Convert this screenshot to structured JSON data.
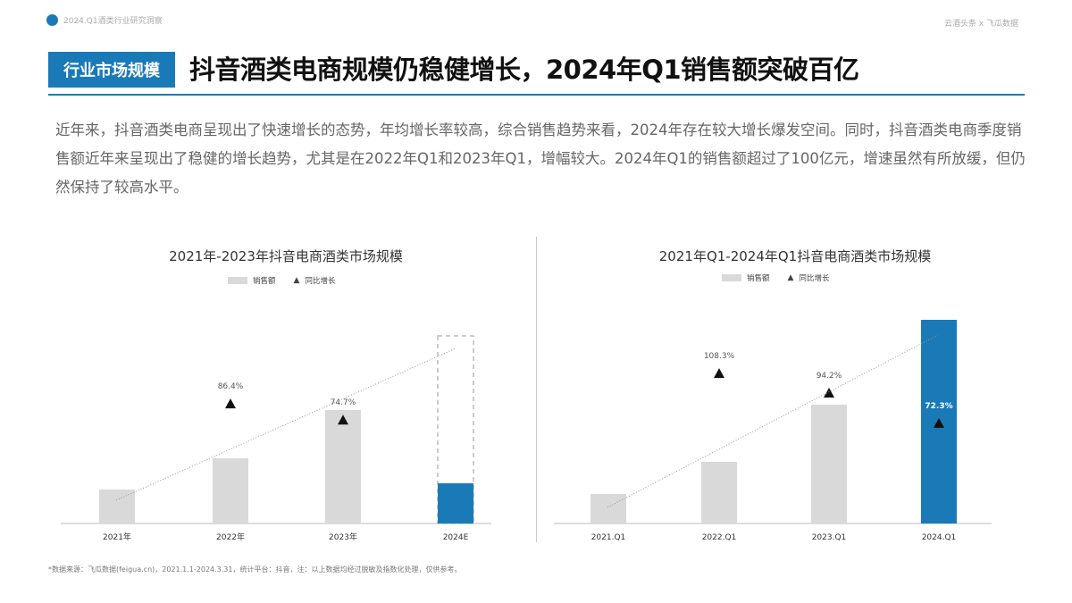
{
  "header": {
    "left": "2024.Q1酒类行业研究洞察",
    "right": "云酒头条 x 飞瓜数据"
  },
  "section_tag": "行业市场规模",
  "title": "抖音酒类电商规模仍稳健增长，2024年Q1销售额突破百亿",
  "paragraph": "近年来，抖音酒类电商呈现出了快速增长的态势，年均增长率较高，综合销售趋势来看，2024年存在较大增长爆发空间。同时，抖音酒类电商季度销售额近年来呈现出了稳健的增长趋势，尤其是在2022年Q1和2023年Q1，增幅较大。2024年Q1的销售额超过了100亿元，增速虽然有所放缓，但仍然保持了较高水平。",
  "source": "*数据来源：飞瓜数据(feigua.cn)，2021.1.1-2024.3.31，统计平台：抖音，注：以上数据均经过脱敏及指数化处理，仅供参考。",
  "colors": {
    "accent": "#1a7ab8",
    "bar": "#d9d9d9"
  },
  "chart_data": [
    {
      "type": "bar",
      "title": "2021年-2023年抖音电商酒类市场规模",
      "legend": [
        "销售额",
        "同比增长"
      ],
      "categories": [
        "2021年",
        "2022年",
        "2023年",
        "2024E"
      ],
      "sales_index": [
        38,
        73,
        127,
        210
      ],
      "q1_actual_2024E": 45,
      "growth_pct": [
        null,
        86.4,
        74.7,
        null
      ],
      "growth_labels": [
        "",
        "86.4%",
        "74.7%",
        ""
      ],
      "trendline": true
    },
    {
      "type": "bar",
      "title": "2021年Q1-2024年Q1抖音电商酒类市场规模",
      "legend": [
        "销售额",
        "同比增长"
      ],
      "categories": [
        "2021.Q1",
        "2022.Q1",
        "2023.Q1",
        "2024.Q1"
      ],
      "sales_index": [
        33,
        69,
        133,
        228
      ],
      "growth_pct": [
        null,
        108.3,
        94.2,
        72.3
      ],
      "growth_labels": [
        "",
        "108.3%",
        "94.2%",
        "72.3%"
      ],
      "highlight_last": true,
      "trendline": true
    }
  ]
}
